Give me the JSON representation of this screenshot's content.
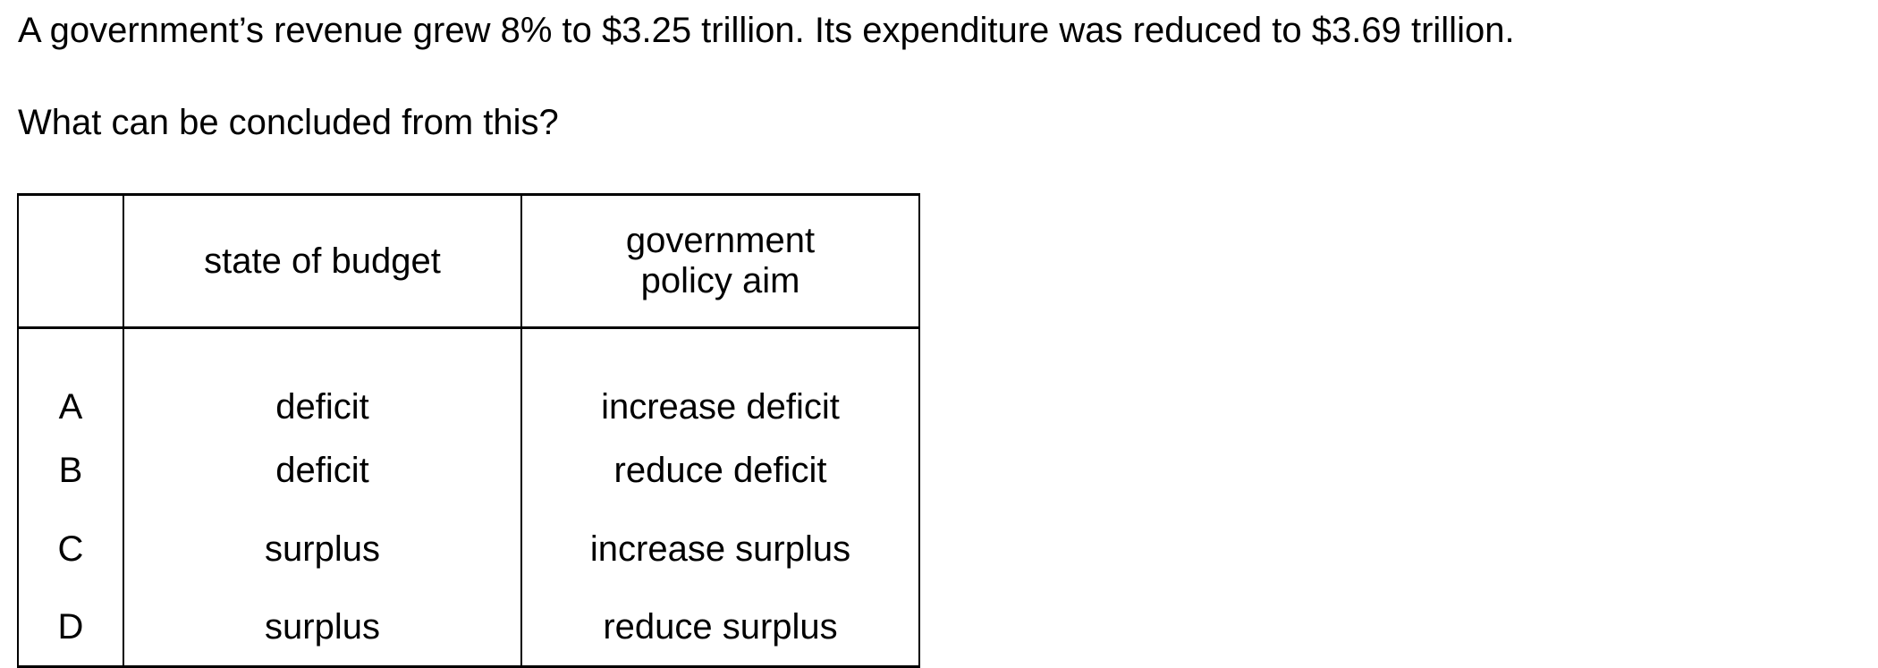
{
  "question": {
    "stem": "A government’s revenue grew 8% to $3.25 trillion. Its expenditure was reduced to $3.69 trillion.",
    "prompt": "What can be concluded from this?"
  },
  "table": {
    "headers": [
      "",
      "state of budget",
      "government policy aim"
    ],
    "rows": [
      {
        "letter": "A",
        "state": "deficit",
        "aim": "increase deficit"
      },
      {
        "letter": "B",
        "state": "deficit",
        "aim": "reduce deficit"
      },
      {
        "letter": "C",
        "state": "surplus",
        "aim": "increase surplus"
      },
      {
        "letter": "D",
        "state": "surplus",
        "aim": "reduce surplus"
      }
    ]
  }
}
